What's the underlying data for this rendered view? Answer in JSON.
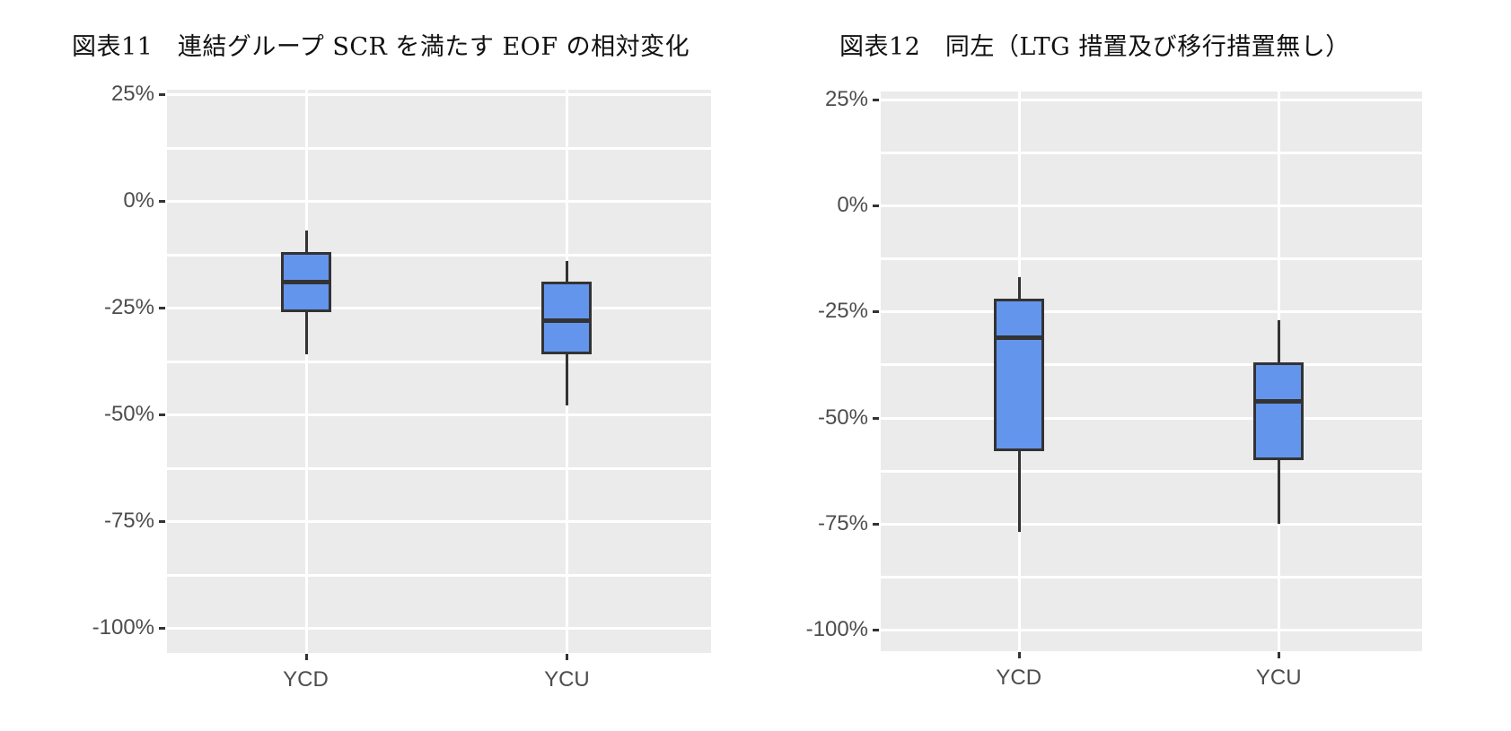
{
  "figures": [
    {
      "title": "図表11　連結グループ SCR を満たす EOF の相対変化"
    },
    {
      "title": "図表12　同左（LTG 措置及び移行措置無し）"
    }
  ],
  "colors": {
    "box_fill": "#6495ed",
    "box_outline": "#333333",
    "panel_bg": "#ebebeb",
    "grid": "#ffffff"
  },
  "chart_data": [
    {
      "type": "boxplot",
      "title": "図表11　連結グループ SCR を満たす EOF の相対変化",
      "xlabel": "",
      "ylabel": "",
      "categories": [
        "YCD",
        "YCU"
      ],
      "y_ticks": [
        "25%",
        "0%",
        "-25%",
        "-50%",
        "-75%",
        "-100%"
      ],
      "ylim": [
        -1.05,
        0.26
      ],
      "grid": true,
      "series": [
        {
          "name": "YCD",
          "whisker_high": -0.07,
          "q3": -0.12,
          "median": -0.19,
          "q1": -0.26,
          "whisker_low": -0.36
        },
        {
          "name": "YCU",
          "whisker_high": -0.14,
          "q3": -0.19,
          "median": -0.28,
          "q1": -0.36,
          "whisker_low": -0.48
        }
      ]
    },
    {
      "type": "boxplot",
      "title": "図表12　同左（LTG 措置及び移行措置無し）",
      "xlabel": "",
      "ylabel": "",
      "categories": [
        "YCD",
        "YCU"
      ],
      "y_ticks": [
        "25%",
        "0%",
        "-25%",
        "-50%",
        "-75%",
        "-100%"
      ],
      "ylim": [
        -1.05,
        0.27
      ],
      "grid": true,
      "series": [
        {
          "name": "YCD",
          "whisker_high": -0.17,
          "q3": -0.22,
          "median": -0.31,
          "q1": -0.58,
          "whisker_low": -0.77
        },
        {
          "name": "YCU",
          "whisker_high": -0.27,
          "q3": -0.37,
          "median": -0.46,
          "q1": -0.6,
          "whisker_low": -0.75
        }
      ]
    }
  ]
}
